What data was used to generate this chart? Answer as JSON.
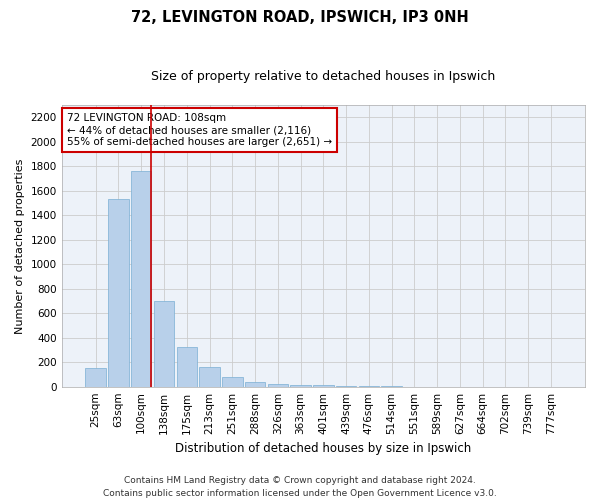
{
  "title1": "72, LEVINGTON ROAD, IPSWICH, IP3 0NH",
  "title2": "Size of property relative to detached houses in Ipswich",
  "xlabel": "Distribution of detached houses by size in Ipswich",
  "ylabel": "Number of detached properties",
  "categories": [
    "25sqm",
    "63sqm",
    "100sqm",
    "138sqm",
    "175sqm",
    "213sqm",
    "251sqm",
    "288sqm",
    "326sqm",
    "363sqm",
    "401sqm",
    "439sqm",
    "476sqm",
    "514sqm",
    "551sqm",
    "589sqm",
    "627sqm",
    "664sqm",
    "702sqm",
    "739sqm",
    "777sqm"
  ],
  "values": [
    150,
    1530,
    1760,
    700,
    320,
    160,
    80,
    40,
    25,
    15,
    10,
    5,
    3,
    2,
    1,
    1,
    1,
    0,
    0,
    0,
    0
  ],
  "bar_color": "#b8d0ea",
  "bar_edge_color": "#7aafd4",
  "vline_color": "#cc0000",
  "annotation_text": "72 LEVINGTON ROAD: 108sqm\n← 44% of detached houses are smaller (2,116)\n55% of semi-detached houses are larger (2,651) →",
  "annotation_box_color": "#ffffff",
  "annotation_box_edge": "#cc0000",
  "ylim": [
    0,
    2300
  ],
  "yticks": [
    0,
    200,
    400,
    600,
    800,
    1000,
    1200,
    1400,
    1600,
    1800,
    2000,
    2200
  ],
  "grid_color": "#cccccc",
  "bg_color": "#edf2f9",
  "footer1": "Contains HM Land Registry data © Crown copyright and database right 2024.",
  "footer2": "Contains public sector information licensed under the Open Government Licence v3.0.",
  "title1_fontsize": 10.5,
  "title2_fontsize": 9,
  "xlabel_fontsize": 8.5,
  "ylabel_fontsize": 8,
  "tick_fontsize": 7.5,
  "annotation_fontsize": 7.5,
  "footer_fontsize": 6.5
}
